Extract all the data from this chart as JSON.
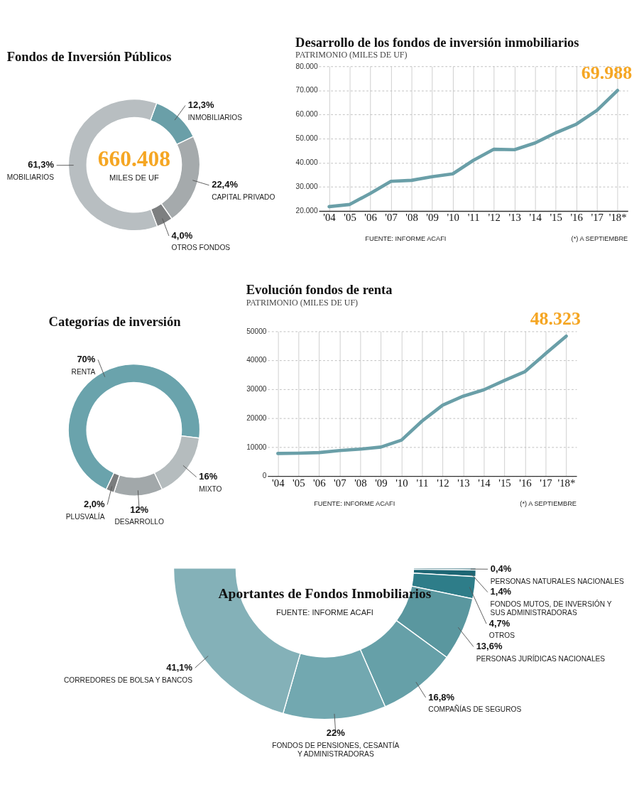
{
  "chart_data": [
    {
      "type": "donut",
      "title": "Fondos de Inversión Públicos",
      "categories": [
        "INMOBILIARIOS",
        "CAPITAL PRIVADO",
        "OTROS FONDOS",
        "MOBILIARIOS"
      ],
      "values": [
        12.3,
        22.4,
        4.0,
        61.3
      ],
      "value_labels": [
        "12,3%",
        "22,4%",
        "4,0%",
        "61,3%"
      ],
      "colors": [
        "#6a9fa8",
        "#a5aaac",
        "#7d7f80",
        "#b8bec1"
      ],
      "annotations": [
        "660.408",
        "MILES DE UF"
      ]
    },
    {
      "type": "line",
      "title": "Desarrollo de los fondos de inversión inmobiliarios",
      "subtitle": "PATRIMONIO (MILES DE UF)",
      "categories": [
        "'04",
        "'05",
        "'06",
        "'07",
        "'08",
        "'09",
        "'10",
        "'11",
        "'12",
        "'13",
        "'14",
        "'15",
        "'16",
        "'17",
        "'18*"
      ],
      "series": [
        {
          "color": "#6a9fa8",
          "values": [
            21800,
            22700,
            27300,
            32300,
            32700,
            34200,
            35400,
            41000,
            45600,
            45400,
            48200,
            52400,
            56000,
            61700,
            69988
          ]
        }
      ],
      "ylim": [
        20000,
        80000
      ],
      "yticks": [
        {
          "value": 20000,
          "label": "20.000"
        },
        {
          "value": 30000,
          "label": "30.000"
        },
        {
          "value": 40000,
          "label": "40.000"
        },
        {
          "value": 50000,
          "label": "50.000"
        },
        {
          "value": 60000,
          "label": "60.000"
        },
        {
          "value": 70000,
          "label": "70.000"
        },
        {
          "value": 80000,
          "label": "80.000"
        }
      ],
      "grid": true,
      "marker": "none",
      "annotations": [
        {
          "text": "69.988",
          "x": "'18*",
          "y": 69988
        },
        "FUENTE: INFORME ACAFI",
        "(*) A SEPTIEMBRE"
      ]
    },
    {
      "type": "donut",
      "title": "Categorías de inversión",
      "categories": [
        "RENTA",
        "MIXTO",
        "DESARROLLO",
        "PLUSVALÍA"
      ],
      "values": [
        70,
        16,
        12,
        2.0
      ],
      "value_labels": [
        "70%",
        "16%",
        "12%",
        "2,0%"
      ],
      "colors": [
        "#6aa3ac",
        "#b5bcbe",
        "#a2a8aa",
        "#7b7d7e"
      ]
    },
    {
      "type": "line",
      "title": "Evolución fondos de renta",
      "subtitle": "PATRIMONIO (MILES DE UF)",
      "categories": [
        "'04",
        "'05",
        "'06",
        "'07",
        "'08",
        "'09",
        "'10",
        "'11",
        "'12",
        "'13",
        "'14",
        "'15",
        "'16",
        "'17",
        "'18*"
      ],
      "series": [
        {
          "color": "#6a9fa8",
          "values": [
            7800,
            7900,
            8100,
            8800,
            9300,
            10000,
            12400,
            19000,
            24500,
            27600,
            29800,
            33000,
            36100,
            42300,
            48323
          ]
        }
      ],
      "ylim": [
        0,
        50000
      ],
      "yticks": [
        0,
        10000,
        20000,
        30000,
        40000,
        50000
      ],
      "grid": true,
      "marker": "none",
      "annotations": [
        {
          "text": "48.323",
          "x": "'18*",
          "y": 48323
        },
        "FUENTE: INFORME ACAFI",
        "(*) A SEPTIEMBRE"
      ]
    },
    {
      "type": "donut",
      "title": "Aportantes de Fondos Inmobiliarios",
      "categories": [
        "PERSONAS NATURALES NACIONALES",
        "FONDOS MUTOS, DE INVERSIÓN Y SUS ADMINISTRADORAS",
        "OTROS",
        "PERSONAS JURÍDICAS NACIONALES",
        "COMPAÑÍAS DE SEGUROS",
        "FONDOS DE PENSIONES, CESANTÍA Y ADMINISTRADORAS",
        "CORREDORES DE BOLSA Y BANCOS"
      ],
      "values": [
        0.4,
        1.4,
        4.7,
        13.6,
        16.8,
        22,
        41.1
      ],
      "value_labels": [
        "0,4%",
        "1,4%",
        "4,7%",
        "13,6%",
        "16,8%",
        "22%",
        "41,1%"
      ],
      "colors": [
        "#0e5565",
        "#1d6674",
        "#2e7d89",
        "#5a979f",
        "#66a0a8",
        "#72a8b0",
        "#84b1b8"
      ],
      "annotations": [
        "FUENTE: INFORME ACAFI"
      ]
    }
  ]
}
